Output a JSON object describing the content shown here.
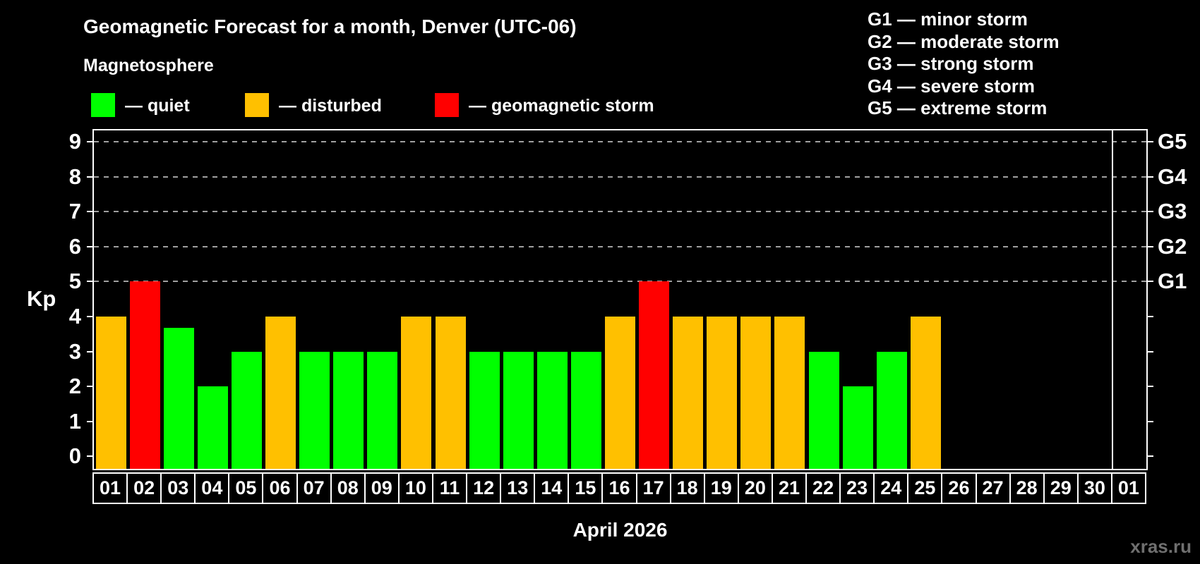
{
  "header": {
    "title": "Geomagnetic Forecast for a month, Denver (UTC-06)",
    "subtitle": "Magnetosphere"
  },
  "legend": {
    "items": [
      {
        "key": "quiet",
        "label": "— quiet"
      },
      {
        "key": "disturbed",
        "label": "— disturbed"
      },
      {
        "key": "storm",
        "label": "— geomagnetic storm"
      }
    ]
  },
  "storm_scale_legend": {
    "items": [
      "G1 — minor storm",
      "G2 — moderate storm",
      "G3 — strong storm",
      "G4 — severe storm",
      "G5 — extreme storm"
    ]
  },
  "colors": {
    "quiet": "#00ff00",
    "disturbed": "#ffc000",
    "storm": "#ff0000",
    "grid": "#a0a0a0",
    "axis": "#ffffff",
    "watermark": "#6f6f6f"
  },
  "chart_data": {
    "type": "bar",
    "title": "Geomagnetic Forecast for a month, Denver (UTC-06)",
    "xlabel": "April 2026",
    "ylabel": "Kp",
    "categories": [
      "01",
      "02",
      "03",
      "04",
      "05",
      "06",
      "07",
      "08",
      "09",
      "10",
      "11",
      "12",
      "13",
      "14",
      "15",
      "16",
      "17",
      "18",
      "19",
      "20",
      "21",
      "22",
      "23",
      "24",
      "25",
      "26",
      "27",
      "28",
      "29",
      "30",
      "01"
    ],
    "values": [
      4,
      5,
      3.67,
      2,
      3,
      4,
      3,
      3,
      3,
      4,
      4,
      3,
      3,
      3,
      3,
      4,
      5,
      4,
      4,
      4,
      4,
      3,
      2,
      3,
      4,
      null,
      null,
      null,
      null,
      null,
      null
    ],
    "statuses": [
      "disturbed",
      "storm",
      "quiet",
      "quiet",
      "quiet",
      "disturbed",
      "quiet",
      "quiet",
      "quiet",
      "disturbed",
      "disturbed",
      "quiet",
      "quiet",
      "quiet",
      "quiet",
      "disturbed",
      "storm",
      "disturbed",
      "disturbed",
      "disturbed",
      "disturbed",
      "quiet",
      "quiet",
      "quiet",
      "disturbed",
      null,
      null,
      null,
      null,
      null,
      null
    ],
    "thresholds": {
      "disturbed_min": 4,
      "storm_min": 5
    },
    "ylim": [
      -0.4,
      9.4
    ],
    "yticks": [
      0,
      1,
      2,
      3,
      4,
      5,
      6,
      7,
      8,
      9
    ],
    "gridlines_at": [
      5,
      6,
      7,
      8,
      9
    ],
    "right_axis_labels": [
      {
        "value": 5,
        "label": "G1"
      },
      {
        "value": 6,
        "label": "G2"
      },
      {
        "value": 7,
        "label": "G3"
      },
      {
        "value": 8,
        "label": "G4"
      },
      {
        "value": 9,
        "label": "G5"
      }
    ],
    "month_separator_before_index": 30,
    "grid": true,
    "legend_position": "top-left"
  },
  "footer": {
    "xaxis_title": "April 2026",
    "watermark": "xras.ru"
  }
}
